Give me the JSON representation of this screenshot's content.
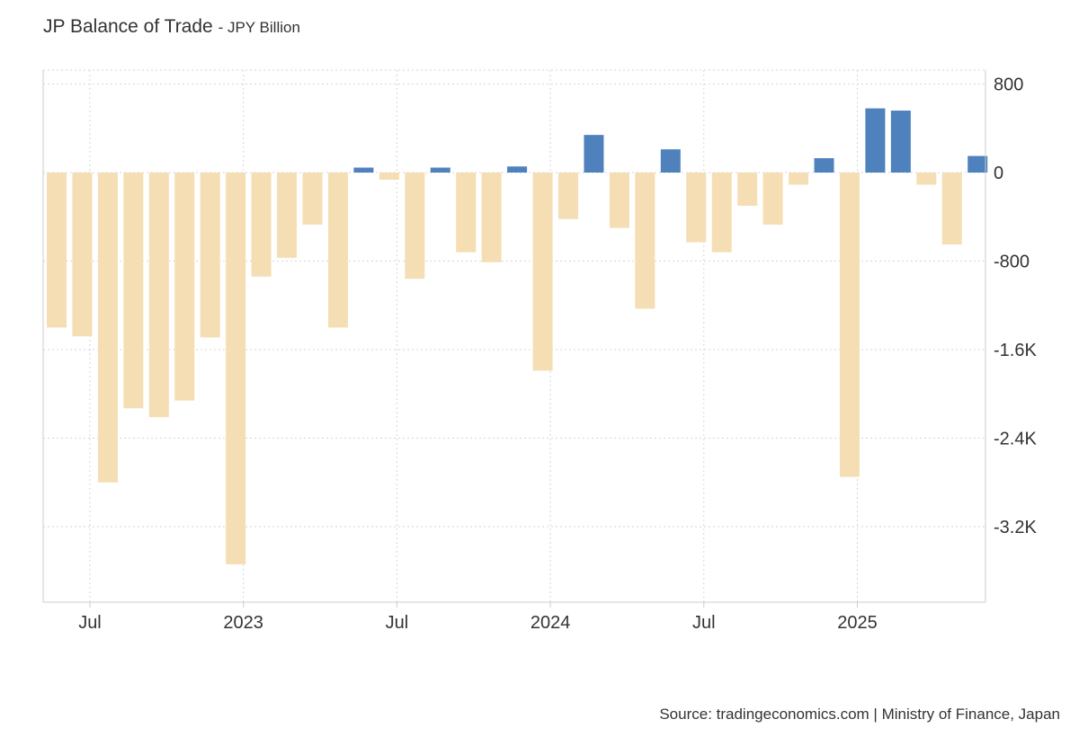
{
  "title": "JP Balance of Trade",
  "unit_label": "- JPY Billion",
  "source": "Source: tradingeconomics.com | Ministry of Finance, Japan",
  "chart_data": {
    "type": "bar",
    "title": "JP Balance of Trade - JPY Billion",
    "xlabel": "",
    "ylabel": "JPY Billion",
    "ylim": [
      -3900,
      900
    ],
    "yticks": [
      {
        "value": 800,
        "label": "800"
      },
      {
        "value": 0,
        "label": "0"
      },
      {
        "value": -800,
        "label": "-800"
      },
      {
        "value": -1600,
        "label": "-1.6K"
      },
      {
        "value": -2400,
        "label": "-2.4K"
      },
      {
        "value": -3200,
        "label": "-3.2K"
      }
    ],
    "xticks": [
      {
        "index": 1.3,
        "label": "Jul"
      },
      {
        "index": 7.3,
        "label": "2023"
      },
      {
        "index": 13.3,
        "label": "Jul"
      },
      {
        "index": 19.3,
        "label": "2024"
      },
      {
        "index": 25.3,
        "label": "Jul"
      },
      {
        "index": 31.3,
        "label": "2025"
      }
    ],
    "positive_color": "#4f81bd",
    "negative_color": "#f5deb3",
    "categories": [
      "2022-06",
      "2022-07",
      "2022-08",
      "2022-09",
      "2022-10",
      "2022-11",
      "2022-12",
      "2023-01",
      "2023-02",
      "2023-03",
      "2023-04",
      "2023-05",
      "2023-06",
      "2023-07",
      "2023-08",
      "2023-09",
      "2023-10",
      "2023-11",
      "2023-12",
      "2024-01",
      "2024-02",
      "2024-03",
      "2024-04",
      "2024-05",
      "2024-06",
      "2024-07",
      "2024-08",
      "2024-09",
      "2024-10",
      "2024-11",
      "2024-12",
      "2025-01",
      "2025-02",
      "2025-03",
      "2025-04",
      "2025-05",
      "2025-06"
    ],
    "values": [
      -1400,
      -1480,
      -2800,
      -2130,
      -2210,
      -2060,
      -1490,
      -3540,
      -940,
      -770,
      -470,
      -1400,
      45,
      -65,
      -960,
      45,
      -720,
      -810,
      55,
      -1790,
      -420,
      340,
      -500,
      -1230,
      210,
      -630,
      -720,
      -300,
      -470,
      -110,
      130,
      -2750,
      580,
      560,
      -110,
      -650,
      150
    ]
  }
}
